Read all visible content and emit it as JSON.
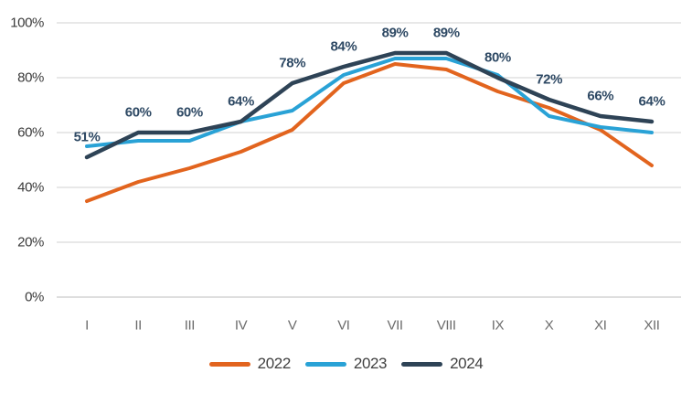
{
  "chart_data": {
    "type": "line",
    "title": "",
    "xlabel": "",
    "ylabel": "",
    "categories": [
      "I",
      "II",
      "III",
      "IV",
      "V",
      "VI",
      "VII",
      "VIII",
      "IX",
      "X",
      "XI",
      "XII"
    ],
    "series": [
      {
        "name": "2022",
        "color": "#E2641E",
        "stroke_width": 4,
        "values": [
          35,
          42,
          47,
          53,
          61,
          78,
          85,
          83,
          75,
          69,
          61,
          48
        ]
      },
      {
        "name": "2023",
        "color": "#29A2D6",
        "stroke_width": 4,
        "values": [
          55,
          57,
          57,
          64,
          68,
          81,
          87,
          87,
          81,
          66,
          62,
          60
        ]
      },
      {
        "name": "2024",
        "color": "#2E4356",
        "stroke_width": 4.5,
        "values": [
          51,
          60,
          60,
          64,
          78,
          84,
          89,
          89,
          80,
          72,
          66,
          64
        ]
      }
    ],
    "data_labels": {
      "series": "2024",
      "labels": [
        "51%",
        "60%",
        "60%",
        "64%",
        "78%",
        "84%",
        "89%",
        "89%",
        "80%",
        "72%",
        "66%",
        "64%"
      ],
      "color": "#2E4964"
    },
    "y_ticks": [
      "0%",
      "20%",
      "40%",
      "60%",
      "80%",
      "100%"
    ],
    "y_tick_values": [
      0,
      20,
      40,
      60,
      80,
      100
    ],
    "ylim": [
      0,
      100
    ],
    "grid": "horizontal",
    "gridline_color": "#D9D9D9",
    "baseline_color": "#C9C9C9",
    "axis_text_color": "#3A3A3A",
    "month_text_color": "#6B6B6B",
    "legend_position": "bottom",
    "legend": [
      "2022",
      "2023",
      "2024"
    ]
  }
}
